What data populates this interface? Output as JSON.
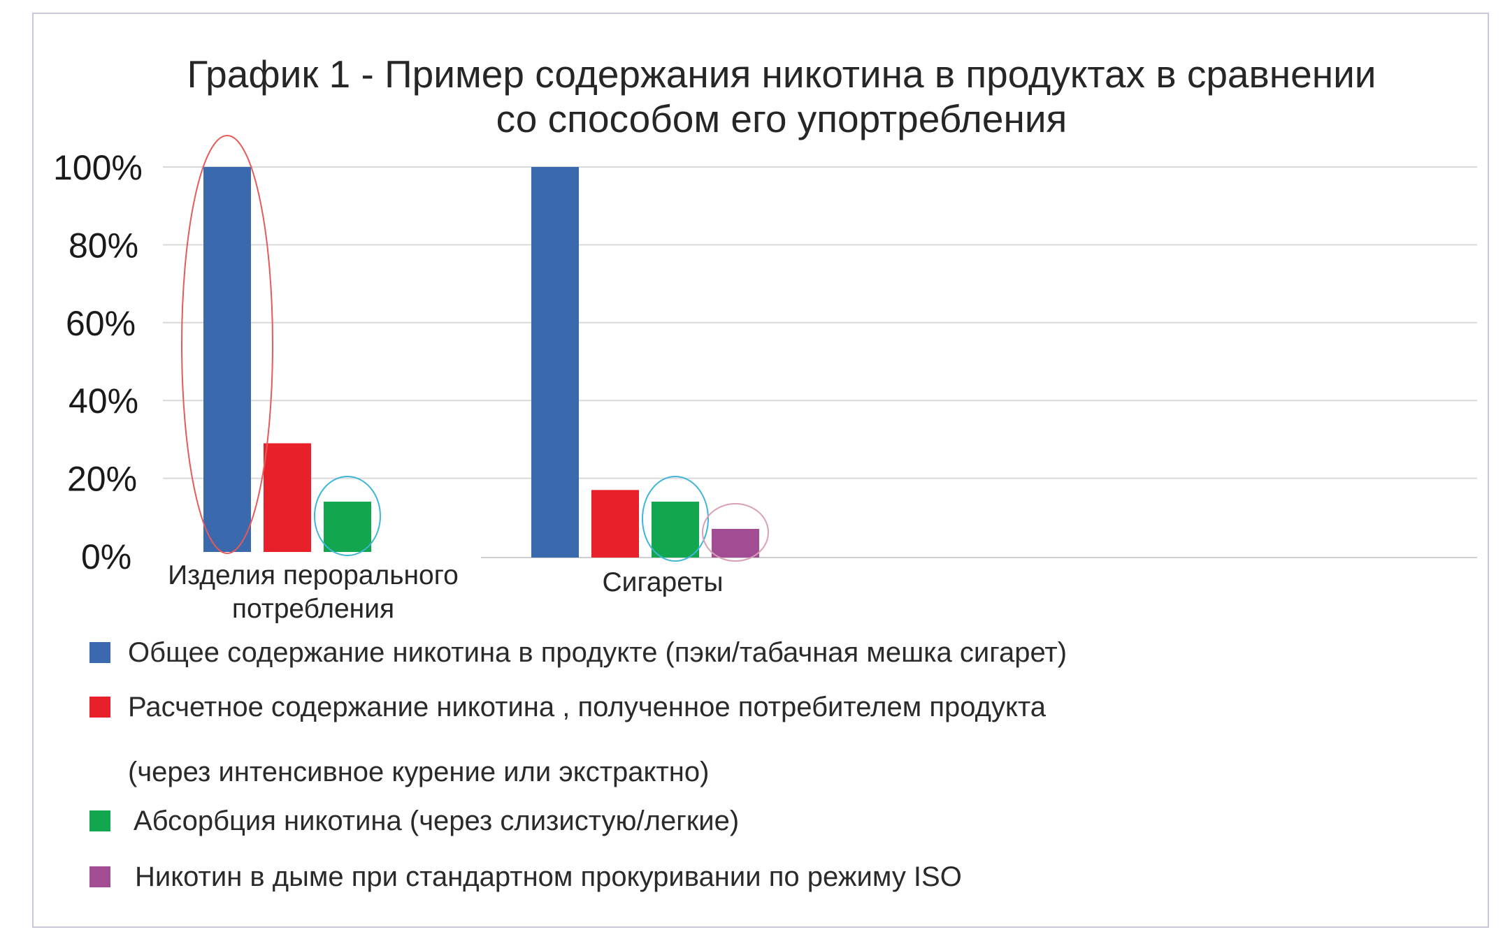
{
  "chart_data": {
    "type": "bar",
    "title_lines": [
      "График 1 - Пример содержания никотина в продуктах в сравнении",
      "со способом его упортребления"
    ],
    "y_ticks": [
      "100%",
      "80%",
      "60%",
      "40%",
      "20%",
      "0%"
    ],
    "ylim": [
      0,
      100
    ],
    "categories": [
      [
        "Изделия перорального",
        "потребления"
      ],
      [
        "Сигареты"
      ]
    ],
    "series": [
      {
        "name": "Общее содержание никотина в продукте (пэки/табачная мешка сигарет)",
        "color": "#3a69ae",
        "values": [
          100,
          100
        ]
      },
      {
        "name": "Расчетное содержание никотина , полученное потребителем продукта",
        "name_line2": "(через интенсивное курение или экстрактно)",
        "color": "#e8202a",
        "values": [
          29,
          17
        ]
      },
      {
        "name": "Абсорбция никотина (через слизистую/легкие)",
        "color": "#12a64f",
        "values": [
          14,
          14
        ]
      },
      {
        "name": "Никотин в дыме при стандартном прокуривании по режиму ISO",
        "color": "#a24d93",
        "values": [
          null,
          7
        ]
      }
    ],
    "highlights": [
      {
        "category": 0,
        "series": 0,
        "color": "#e55a5a"
      },
      {
        "category": 0,
        "series": 2,
        "color": "#3fb6d8"
      },
      {
        "category": 1,
        "series": 2,
        "color": "#3fb6d8"
      },
      {
        "category": 1,
        "series": 3,
        "color": "#d9a0b8"
      }
    ],
    "grid": true,
    "legend_position": "bottom"
  }
}
